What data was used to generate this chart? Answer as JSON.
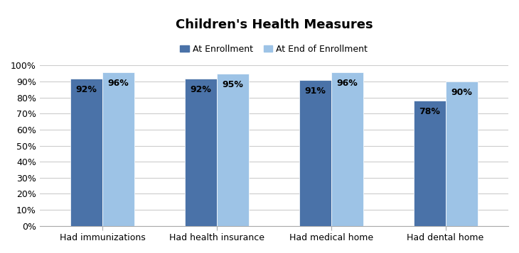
{
  "title": "Children's Health Measures",
  "categories": [
    "Had immunizations",
    "Had health insurance",
    "Had medical home",
    "Had dental home"
  ],
  "series": [
    {
      "label": "At Enrollment",
      "values": [
        0.92,
        0.92,
        0.91,
        0.78
      ],
      "color": "#4A72A8",
      "labels": [
        "92%",
        "92%",
        "91%",
        "78%"
      ]
    },
    {
      "label": "At End of Enrollment",
      "values": [
        0.96,
        0.95,
        0.96,
        0.9
      ],
      "color": "#9DC3E6",
      "labels": [
        "96%",
        "95%",
        "96%",
        "90%"
      ]
    }
  ],
  "ylim": [
    0,
    1.0
  ],
  "yticks": [
    0.0,
    0.1,
    0.2,
    0.3,
    0.4,
    0.5,
    0.6,
    0.7,
    0.8,
    0.9,
    1.0
  ],
  "ytick_labels": [
    "0%",
    "10%",
    "20%",
    "30%",
    "40%",
    "50%",
    "60%",
    "70%",
    "80%",
    "90%",
    "100%"
  ],
  "bar_width": 0.28,
  "title_fontsize": 13,
  "label_fontsize": 9,
  "tick_fontsize": 9,
  "background_color": "#FFFFFF",
  "grid_color": "#CCCCCC",
  "value_label_fontsize": 9
}
